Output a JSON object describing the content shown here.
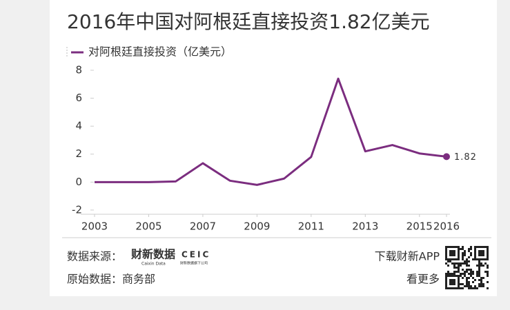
{
  "chart_data": {
    "type": "line",
    "title": "2016年中国对阿根廷直接投资1.82亿美元",
    "x": [
      2003,
      2004,
      2005,
      2006,
      2007,
      2008,
      2009,
      2010,
      2011,
      2012,
      2013,
      2014,
      2015,
      2016
    ],
    "series": [
      {
        "name": "对阿根廷直接投资（亿美元）",
        "color": "#7b2d7f",
        "values": [
          0,
          0,
          0,
          0.05,
          1.35,
          0.1,
          -0.2,
          0.25,
          1.8,
          7.4,
          2.2,
          2.65,
          2.05,
          1.82
        ]
      }
    ],
    "xlim": [
      2003,
      2016
    ],
    "xticks": [
      2003,
      2005,
      2007,
      2009,
      2011,
      2013,
      2015,
      2016
    ],
    "ylim": [
      -2.3,
      8
    ],
    "yticks": [
      -2,
      0,
      2,
      4,
      6,
      8
    ],
    "grid": false
  },
  "footer": {
    "source_label": "数据来源：",
    "source_logo": "财新数据",
    "source_logo_sub": "Caixin Data",
    "partner_logo": "CEIC",
    "partner_logo_sub": "财新数据旗下公司",
    "original_source": "原始数据：商务部",
    "app_download": "下载财新APP",
    "see_more": "看更多"
  }
}
